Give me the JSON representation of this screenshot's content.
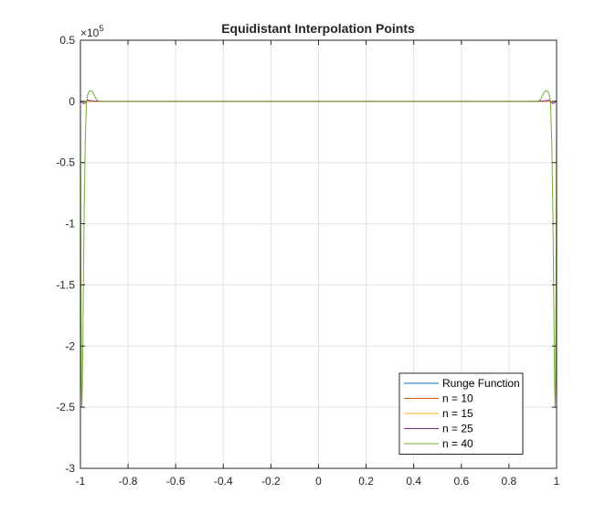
{
  "chart_data": {
    "type": "line",
    "title": "Equidistant Interpolation Points",
    "xlabel": "",
    "ylabel": "",
    "exponent_label": "×10",
    "exponent_power": "5",
    "xlim": [
      -1,
      1
    ],
    "ylim": [
      -3,
      0.5
    ],
    "y_scale": 100000,
    "xticks": [
      -1,
      -0.8,
      -0.6,
      -0.4,
      -0.2,
      0,
      0.2,
      0.4,
      0.6,
      0.8,
      1
    ],
    "xtick_labels": [
      "-1",
      "-0.8",
      "-0.6",
      "-0.4",
      "-0.2",
      "0",
      "0.2",
      "0.4",
      "0.6",
      "0.8",
      "1"
    ],
    "yticks": [
      0.5,
      0,
      -0.5,
      -1,
      -1.5,
      -2,
      -2.5,
      -3
    ],
    "ytick_labels": [
      "0.5",
      "0",
      "-0.5",
      "-1",
      "-1.5",
      "-2",
      "-2.5",
      "-3"
    ],
    "grid": true,
    "legend_position": "bottom-right",
    "series": [
      {
        "name": "Runge Function",
        "color": "#0072bd",
        "x": [
          -1,
          1
        ],
        "y": [
          0,
          0
        ]
      },
      {
        "name": "n = 10",
        "color": "#d95319",
        "x": [
          -1,
          1
        ],
        "y": [
          0,
          0
        ]
      },
      {
        "name": "n = 15",
        "color": "#edb120",
        "x": [
          -1,
          1
        ],
        "y": [
          0,
          0
        ]
      },
      {
        "name": "n = 25",
        "color": "#7e2f8e",
        "x": [
          -1,
          -0.985,
          -0.97,
          -0.95,
          -0.9,
          0.9,
          0.95,
          0.97,
          0.985,
          1
        ],
        "y": [
          0,
          -0.02,
          0.01,
          0.005,
          0,
          0,
          0.005,
          0.01,
          -0.02,
          0
        ]
      },
      {
        "name": "n = 40",
        "color": "#77ac30",
        "x": [
          -1,
          -0.998,
          -0.996,
          -0.994,
          -0.992,
          -0.99,
          -0.985,
          -0.98,
          -0.975,
          -0.97,
          -0.965,
          -0.96,
          -0.955,
          -0.95,
          -0.945,
          -0.94,
          -0.935,
          -0.93,
          -0.925,
          -0.92,
          -0.91,
          -0.9,
          -0.88,
          -0.85,
          0.85,
          0.88,
          0.9,
          0.91,
          0.92,
          0.925,
          0.93,
          0.935,
          0.94,
          0.945,
          0.95,
          0.955,
          0.96,
          0.965,
          0.97,
          0.975,
          0.98,
          0.985,
          0.99,
          0.992,
          0.994,
          0.996,
          0.998,
          1
        ],
        "y": [
          0,
          -1.4,
          -2.3,
          -2.5,
          -2.35,
          -2.0,
          -1.0,
          -0.35,
          -0.02,
          0.05,
          0.075,
          0.085,
          0.088,
          0.08,
          0.065,
          0.045,
          0.025,
          0.012,
          0.005,
          0.002,
          0.0005,
          0,
          0,
          0,
          0,
          0,
          0,
          0.0005,
          0.002,
          0.005,
          0.012,
          0.025,
          0.045,
          0.065,
          0.08,
          0.088,
          0.085,
          0.075,
          0.05,
          -0.02,
          -0.35,
          -1.0,
          -2.0,
          -2.35,
          -2.5,
          -2.3,
          -1.4,
          0
        ]
      }
    ]
  }
}
